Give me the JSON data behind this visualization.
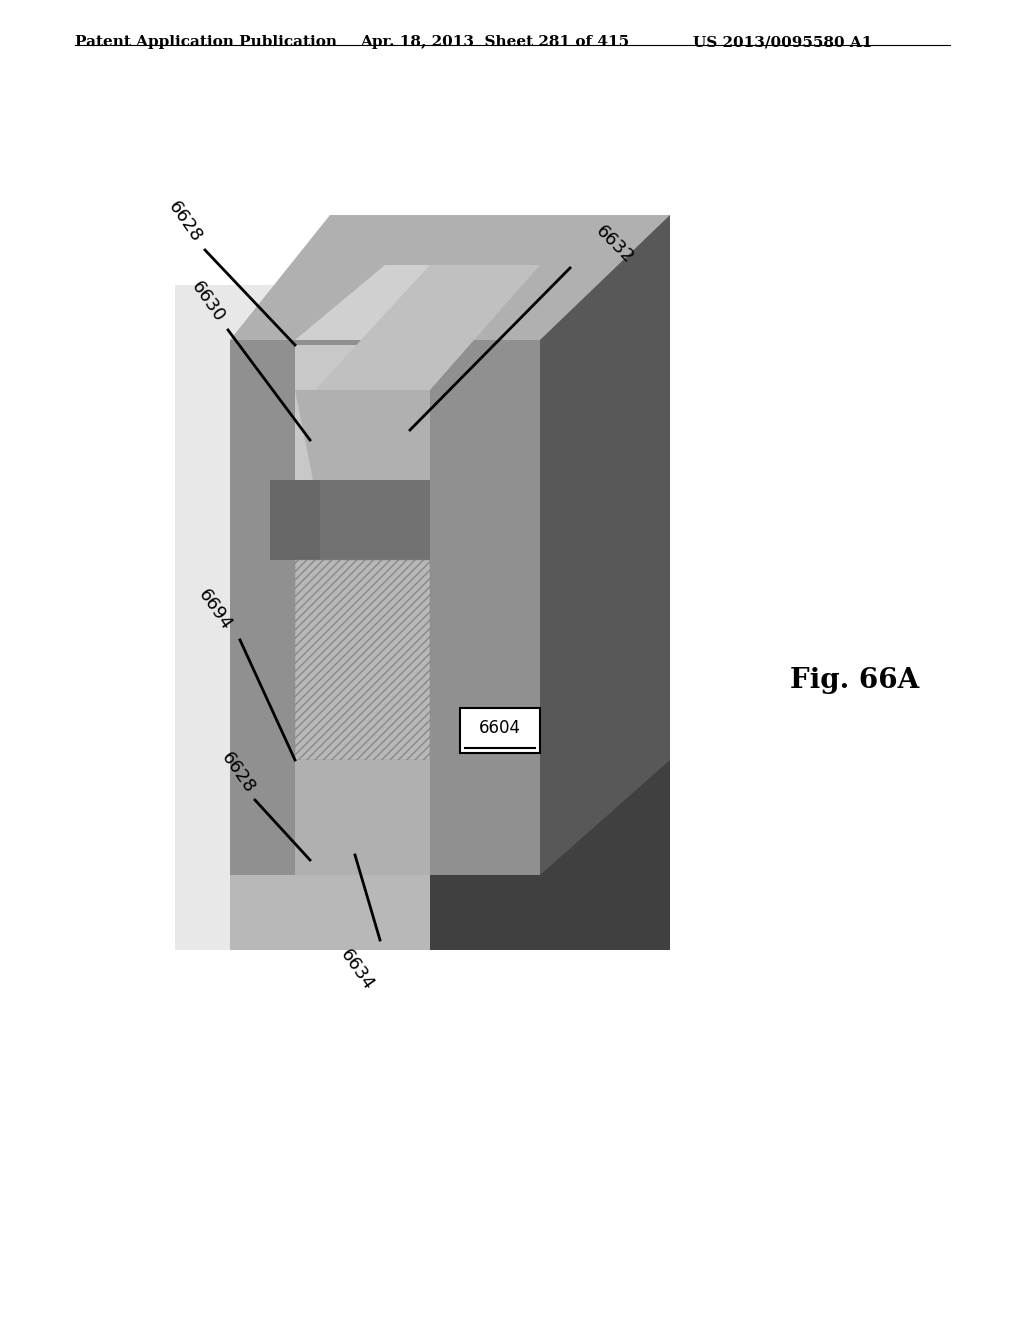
{
  "header_left": "Patent Application Publication",
  "header_mid": "Apr. 18, 2013  Sheet 281 of 415",
  "header_right": "US 2013/0095580 A1",
  "fig_label": "Fig. 66A",
  "background_color": "#ffffff",
  "header_fontsize": 11,
  "label_fontsize": 13,
  "fig_label_fontsize": 20,
  "colors": {
    "very_light_gray": "#e8e8e8",
    "light_gray": "#c8c8c8",
    "medium_light_gray": "#b0b0b0",
    "medium_gray": "#909090",
    "dark_medium_gray": "#727272",
    "dark_gray": "#585858",
    "very_dark_gray": "#404040",
    "darkest": "#303030",
    "white": "#ffffff",
    "black": "#000000",
    "notch_dark": "#686868",
    "hatch_fill": "#b8b8b8"
  }
}
